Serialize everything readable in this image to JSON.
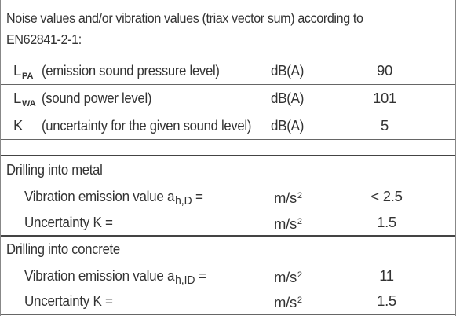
{
  "header": {
    "text": "Noise values and/or vibration values (triax vector sum) according to EN62841-2-1:"
  },
  "noise_rows": [
    {
      "symbol": "L",
      "subscript": "PA",
      "description": "(emission sound pressure level)",
      "unit": "dB(A)",
      "value": "90"
    },
    {
      "symbol": "L",
      "subscript": "WA",
      "description": "(sound power level)",
      "unit": "dB(A)",
      "value": "101"
    },
    {
      "symbol": "K",
      "subscript": "",
      "description": "(uncertainty for the given sound level)",
      "unit": "dB(A)",
      "value": "5"
    }
  ],
  "sections": [
    {
      "title": "Drilling into metal",
      "rows": [
        {
          "label": "Vibration emission value a",
          "subscript": "h,D",
          "suffix": " =",
          "unit": "m/s",
          "unit_sup": "2",
          "value": "< 2.5"
        },
        {
          "label": "Uncertainty K =",
          "subscript": "",
          "suffix": "",
          "unit": "m/s",
          "unit_sup": "2",
          "value": "1.5"
        }
      ]
    },
    {
      "title": "Drilling into concrete",
      "rows": [
        {
          "label": "Vibration emission value a",
          "subscript": "h,ID",
          "suffix": " =",
          "unit": "m/s",
          "unit_sup": "2",
          "value": "11"
        },
        {
          "label": "Uncertainty K =",
          "subscript": "",
          "suffix": "",
          "unit": "m/s",
          "unit_sup": "2",
          "value": "1.5"
        }
      ]
    }
  ]
}
